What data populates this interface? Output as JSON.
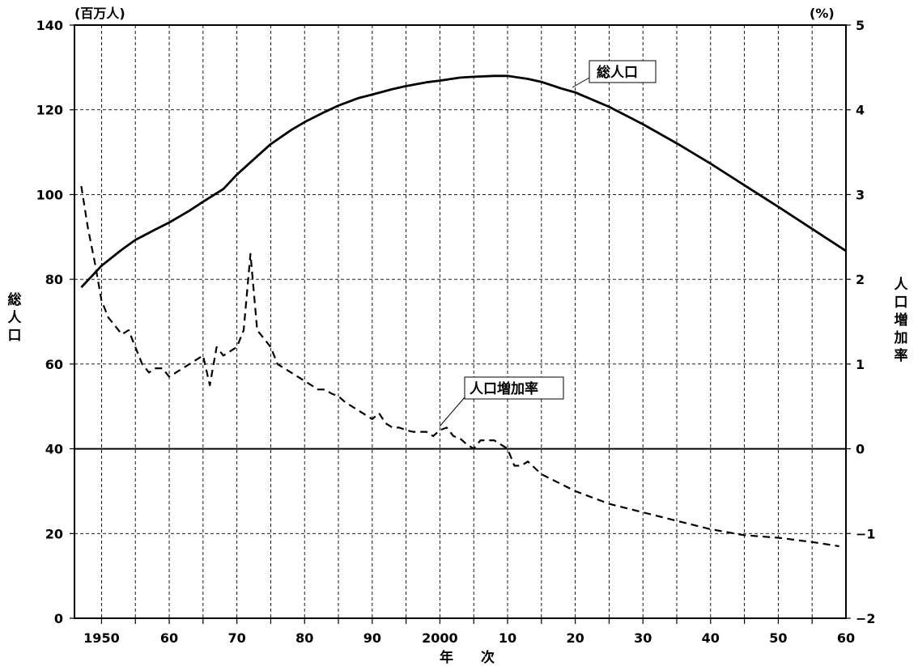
{
  "chart_data": {
    "type": "line",
    "x_range": [
      1946,
      2060
    ],
    "x_ticks": [
      1950,
      1960,
      1970,
      1980,
      1990,
      2000,
      2010,
      2020,
      2030,
      2040,
      2050,
      2060
    ],
    "x_tick_labels": [
      "1950",
      "60",
      "70",
      "80",
      "90",
      "2000",
      "10",
      "20",
      "30",
      "40",
      "50",
      "60"
    ],
    "xlabel": "年　　次",
    "left_axis": {
      "label": "総人口",
      "unit": "(百万人)",
      "range": [
        0,
        140
      ],
      "ticks": [
        0,
        20,
        40,
        60,
        80,
        100,
        120,
        140
      ],
      "tick_labels": [
        "0",
        "20",
        "40",
        "60",
        "80",
        "100",
        "120",
        "140"
      ]
    },
    "right_axis": {
      "label": "人口増加率",
      "unit": "(%)",
      "range": [
        -2,
        5
      ],
      "ticks": [
        -2,
        -1,
        0,
        1,
        2,
        3,
        4,
        5
      ],
      "tick_labels": [
        "−2",
        "−1",
        "0",
        "1",
        "2",
        "3",
        "4",
        "5"
      ]
    },
    "grid": true,
    "series": [
      {
        "name": "総人口",
        "axis": "left",
        "line_style": "solid",
        "color": "#000000",
        "x": [
          1947,
          1950,
          1953,
          1955,
          1958,
          1960,
          1963,
          1965,
          1968,
          1970,
          1972,
          1975,
          1978,
          1980,
          1983,
          1985,
          1988,
          1990,
          1993,
          1995,
          1998,
          2000,
          2003,
          2005,
          2008,
          2010,
          2013,
          2015,
          2018,
          2020,
          2025,
          2030,
          2035,
          2040,
          2045,
          2050,
          2055,
          2060
        ],
        "values": [
          78.1,
          83.2,
          87.0,
          89.3,
          91.8,
          93.4,
          96.2,
          98.3,
          101.3,
          104.7,
          107.6,
          111.9,
          115.2,
          117.1,
          119.5,
          121.0,
          122.8,
          123.6,
          124.9,
          125.6,
          126.5,
          126.9,
          127.6,
          127.8,
          128.0,
          128.0,
          127.3,
          126.6,
          125.0,
          124.1,
          120.7,
          116.6,
          112.1,
          107.3,
          102.2,
          97.1,
          91.9,
          86.7
        ]
      },
      {
        "name": "人口増加率",
        "axis": "right",
        "line_style": "dashed",
        "color": "#000000",
        "x": [
          1947,
          1948,
          1949,
          1950,
          1951,
          1952,
          1953,
          1954,
          1955,
          1956,
          1957,
          1958,
          1959,
          1960,
          1961,
          1962,
          1963,
          1964,
          1965,
          1966,
          1967,
          1968,
          1969,
          1970,
          1971,
          1972,
          1973,
          1974,
          1975,
          1976,
          1977,
          1978,
          1979,
          1980,
          1981,
          1982,
          1983,
          1984,
          1985,
          1986,
          1987,
          1988,
          1989,
          1990,
          1991,
          1992,
          1993,
          1994,
          1995,
          1996,
          1997,
          1998,
          1999,
          2000,
          2001,
          2002,
          2003,
          2004,
          2005,
          2006,
          2007,
          2008,
          2009,
          2010,
          2011,
          2012,
          2013,
          2015,
          2020,
          2025,
          2030,
          2035,
          2040,
          2045,
          2050,
          2055,
          2059
        ],
        "values": [
          3.1,
          2.6,
          2.2,
          1.75,
          1.55,
          1.45,
          1.35,
          1.4,
          1.2,
          1.0,
          0.9,
          0.95,
          0.95,
          0.85,
          0.9,
          0.95,
          1.0,
          1.05,
          1.1,
          0.75,
          1.2,
          1.1,
          1.15,
          1.2,
          1.4,
          2.3,
          1.4,
          1.3,
          1.2,
          1.0,
          0.95,
          0.9,
          0.85,
          0.8,
          0.75,
          0.7,
          0.7,
          0.65,
          0.62,
          0.55,
          0.5,
          0.45,
          0.4,
          0.35,
          0.42,
          0.3,
          0.25,
          0.25,
          0.22,
          0.2,
          0.2,
          0.2,
          0.15,
          0.22,
          0.25,
          0.15,
          0.12,
          0.05,
          0.0,
          0.1,
          0.1,
          0.1,
          0.05,
          0.0,
          -0.2,
          -0.2,
          -0.15,
          -0.3,
          -0.5,
          -0.65,
          -0.75,
          -0.85,
          -0.95,
          -1.02,
          -1.05,
          -1.1,
          -1.15
        ]
      }
    ],
    "annotations": [
      {
        "text": "総人口",
        "series": "総人口"
      },
      {
        "text": "人口増加率",
        "series": "人口増加率"
      }
    ]
  }
}
